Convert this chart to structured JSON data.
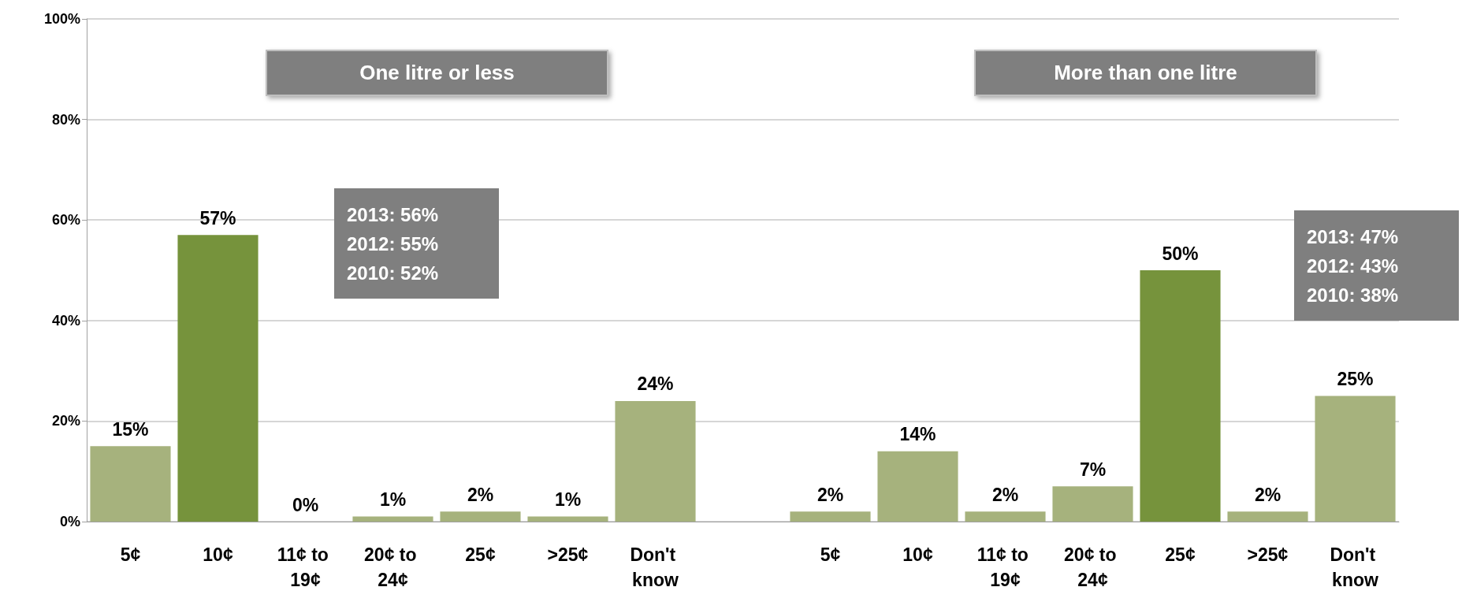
{
  "chart_data": {
    "type": "bar",
    "categories": [
      "5¢",
      "10¢",
      "11¢ to 19¢",
      "20¢ to 24¢",
      "25¢",
      ">25¢",
      "Don't know",
      null,
      "5¢",
      "10¢",
      "11¢ to 19¢",
      "20¢ to 24¢",
      "25¢",
      ">25¢",
      "Don't know"
    ],
    "values": [
      15,
      57,
      0,
      1,
      2,
      1,
      24,
      null,
      2,
      14,
      2,
      7,
      50,
      2,
      25
    ],
    "colors": [
      "#a6b27d",
      "#76933c",
      "#a6b27d",
      "#a6b27d",
      "#a6b27d",
      "#a6b27d",
      "#a6b27d",
      "#a6b27d",
      "#a6b27d",
      "#a6b27d",
      "#a6b27d",
      "#a6b27d",
      "#76933c",
      "#a6b27d",
      "#a6b27d"
    ],
    "value_labels": [
      "15%",
      "57%",
      "0%",
      "1%",
      "2%",
      "1%",
      "24%",
      null,
      "2%",
      "14%",
      "2%",
      "7%",
      "50%",
      "2%",
      "25%"
    ],
    "ylim": [
      0,
      100
    ],
    "yticks": [
      {
        "value": 0,
        "label": "0%"
      },
      {
        "value": 20,
        "label": "20%"
      },
      {
        "value": 40,
        "label": "40%"
      },
      {
        "value": 60,
        "label": "60%"
      },
      {
        "value": 80,
        "label": "80%"
      },
      {
        "value": 100,
        "label": "100%"
      }
    ],
    "grid": "y",
    "annotations": [
      "One litre or less",
      "More than one litre",
      "2013: 56%\n2012: 55%\n2010: 52%",
      "2013: 47%\n2012: 43%\n2010: 38%"
    ]
  }
}
